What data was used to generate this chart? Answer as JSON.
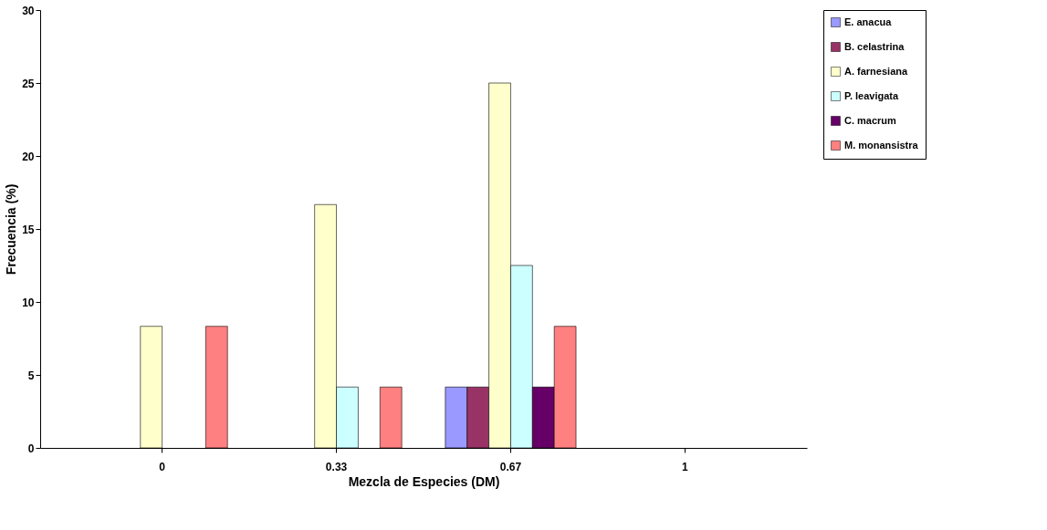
{
  "chart_data": {
    "type": "bar",
    "xlabel": "Mezcla de Especies (DM)",
    "ylabel": "Frecuencia (%)",
    "categories": [
      "0",
      "0.33",
      "0.67",
      "1"
    ],
    "series": [
      {
        "name": "E. anacua",
        "color": "#9999ff",
        "values": [
          0,
          0,
          4.17,
          0
        ]
      },
      {
        "name": "B. celastrina",
        "color": "#993366",
        "values": [
          0,
          0,
          4.17,
          0
        ]
      },
      {
        "name": "A. farnesiana",
        "color": "#ffffcc",
        "values": [
          8.33,
          16.67,
          25,
          0
        ]
      },
      {
        "name": "P. leavigata",
        "color": "#ccffff",
        "values": [
          0,
          4.17,
          12.5,
          0
        ]
      },
      {
        "name": "C. macrum",
        "color": "#660066",
        "values": [
          0,
          0,
          4.17,
          0
        ]
      },
      {
        "name": "M. monansistra",
        "color": "#ff8080",
        "values": [
          8.33,
          4.17,
          8.33,
          0
        ]
      }
    ],
    "ylim": [
      0,
      30
    ],
    "yticks": [
      0,
      5,
      10,
      15,
      20,
      25,
      30
    ],
    "grid": false,
    "legend": "right"
  }
}
